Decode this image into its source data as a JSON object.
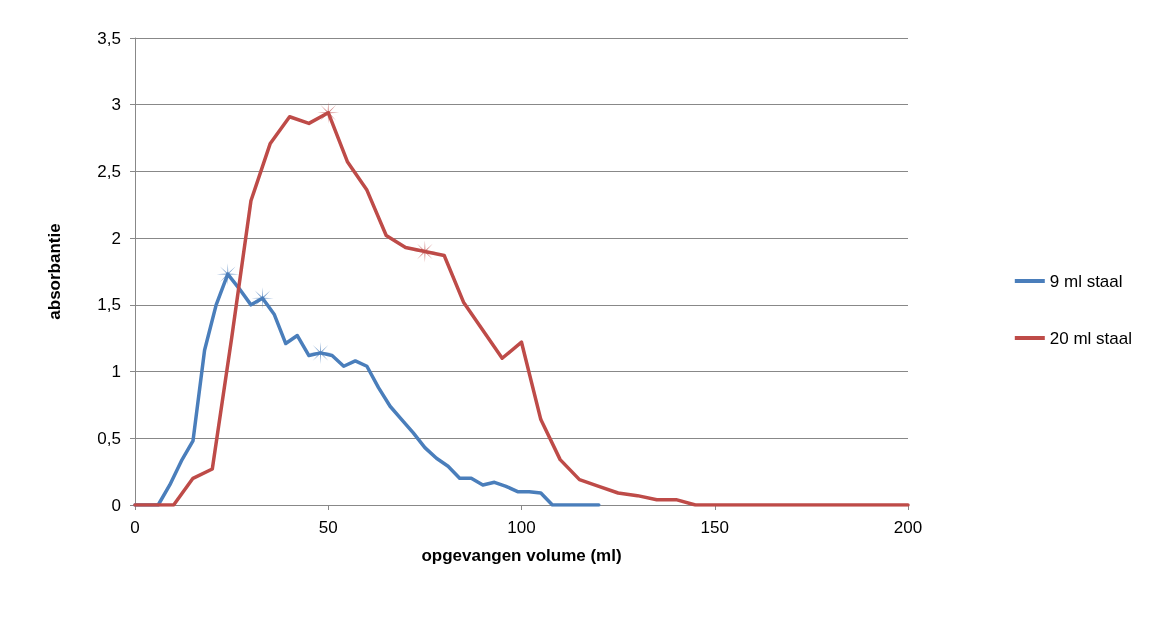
{
  "chart_data": {
    "type": "line",
    "xlabel": "opgevangen volume (ml)",
    "ylabel": "absorbantie",
    "xlim": [
      0,
      200
    ],
    "xticks": [
      0,
      50,
      100,
      150,
      200
    ],
    "ylim": [
      0,
      3.5
    ],
    "yticks": [
      0,
      {
        "value": 0.5,
        "label": "0,5"
      },
      1,
      {
        "value": 1.5,
        "label": "1,5"
      },
      2,
      {
        "value": 2.5,
        "label": "2,5"
      },
      3,
      {
        "value": 3.5,
        "label": "3,5"
      }
    ],
    "grid": "y",
    "legend": "right",
    "marker": "none",
    "line_style": "solid",
    "series": [
      {
        "name": "9 ml staal",
        "color": "#4a7ebb",
        "x": [
          0,
          6,
          9,
          12,
          15,
          18,
          21,
          24,
          27,
          30,
          33,
          36,
          39,
          42,
          45,
          48,
          51,
          54,
          57,
          60,
          63,
          66,
          69,
          72,
          75,
          78,
          81,
          84,
          87,
          90,
          93,
          96,
          99,
          102,
          105,
          108,
          111,
          114,
          117,
          120
        ],
        "values": [
          0,
          0,
          0.15,
          0.33,
          0.48,
          1.16,
          1.5,
          1.73,
          1.62,
          1.5,
          1.55,
          1.43,
          1.21,
          1.27,
          1.12,
          1.14,
          1.12,
          1.04,
          1.08,
          1.04,
          0.88,
          0.74,
          0.64,
          0.54,
          0.43,
          0.35,
          0.29,
          0.2,
          0.2,
          0.15,
          0.17,
          0.14,
          0.1,
          0.1,
          0.09,
          0,
          0,
          0,
          0,
          0
        ]
      },
      {
        "name": "20 ml staal",
        "color": "#be4b48",
        "x": [
          0,
          5,
          10,
          15,
          20,
          25,
          30,
          35,
          40,
          45,
          50,
          55,
          60,
          65,
          70,
          75,
          80,
          85,
          90,
          95,
          100,
          105,
          110,
          115,
          120,
          125,
          130,
          135,
          140,
          145,
          150,
          155,
          160,
          165,
          170,
          175,
          180,
          185,
          190,
          195,
          200
        ],
        "values": [
          0,
          0,
          0,
          0.2,
          0.27,
          1.25,
          2.28,
          2.71,
          2.91,
          2.86,
          2.94,
          2.57,
          2.36,
          2.02,
          1.93,
          1.9,
          1.87,
          1.52,
          1.31,
          1.1,
          1.22,
          0.64,
          0.34,
          0.19,
          0.14,
          0.09,
          0.07,
          0.04,
          0.04,
          0,
          0,
          0,
          0,
          0,
          0,
          0,
          0,
          0,
          0,
          0,
          0
        ]
      },
      {
        "type": "scatter",
        "marker": "star",
        "color": "#4a7ebb",
        "x": [
          24,
          33,
          48
        ],
        "values": [
          1.73,
          1.55,
          1.14
        ]
      },
      {
        "type": "scatter",
        "marker": "star",
        "color": "#be4b48",
        "x": [
          50,
          75
        ],
        "values": [
          2.94,
          1.9
        ]
      }
    ]
  }
}
